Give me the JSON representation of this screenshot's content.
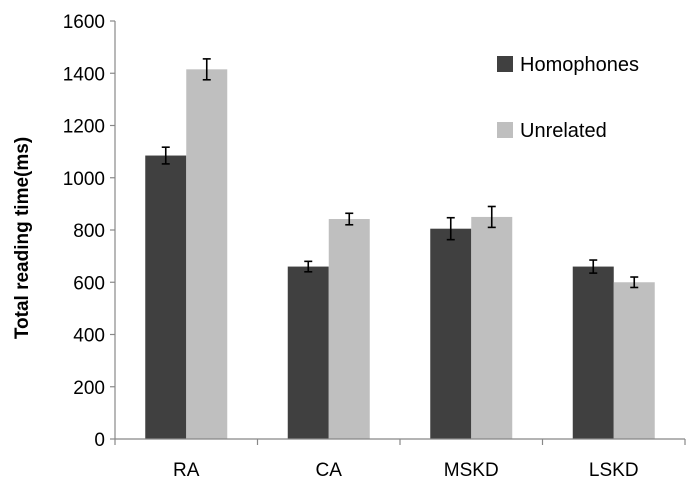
{
  "chart_data": {
    "type": "bar",
    "title": "",
    "xlabel": "",
    "ylabel": "Total reading time(ms)",
    "ylim": [
      0,
      1600
    ],
    "yticks": [
      0,
      200,
      400,
      600,
      800,
      1000,
      1200,
      1400,
      1600
    ],
    "grid": false,
    "legend_position": "top-right",
    "categories": [
      "RA",
      "CA",
      "MSKD",
      "LSKD"
    ],
    "series": [
      {
        "name": "Homophones",
        "color": "#404040",
        "values": [
          1085,
          660,
          805,
          660
        ],
        "errors": [
          32,
          20,
          42,
          25
        ]
      },
      {
        "name": "Unrelated",
        "color": "#bfbfbf",
        "values": [
          1415,
          842,
          850,
          600
        ],
        "errors": [
          40,
          22,
          40,
          20
        ]
      }
    ]
  }
}
